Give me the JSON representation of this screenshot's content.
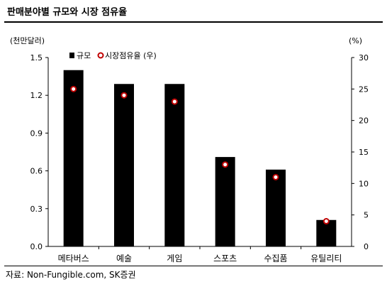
{
  "title": "판매분야별 규모와 시장 점유율",
  "source": "자료: Non-Fungible.com, SK증권",
  "chart_data": {
    "type": "bar",
    "categories": [
      "메타버스",
      "예술",
      "게임",
      "스포츠",
      "수집품",
      "유틸리티"
    ],
    "series": [
      {
        "name": "규모",
        "type": "bar",
        "axis": "left",
        "values": [
          1.4,
          1.29,
          1.29,
          0.71,
          0.61,
          0.21
        ]
      },
      {
        "name": "시장점유율 (우)",
        "type": "scatter",
        "axis": "right",
        "values": [
          25,
          24,
          23,
          13,
          11,
          4
        ]
      }
    ],
    "y_left": {
      "unit": "(천만달러)",
      "min": 0,
      "max": 1.5,
      "ticks": [
        "0.0",
        "0.3",
        "0.6",
        "0.9",
        "1.2",
        "1.5"
      ]
    },
    "y_right": {
      "unit": "(%)",
      "min": 0,
      "max": 30,
      "ticks": [
        "0",
        "5",
        "10",
        "15",
        "20",
        "25",
        "30"
      ]
    },
    "grid": false,
    "legend_position": "top-left",
    "colors": {
      "bar": "#000000",
      "marker_fill": "#ffffff",
      "marker_stroke": "#c00000"
    }
  }
}
